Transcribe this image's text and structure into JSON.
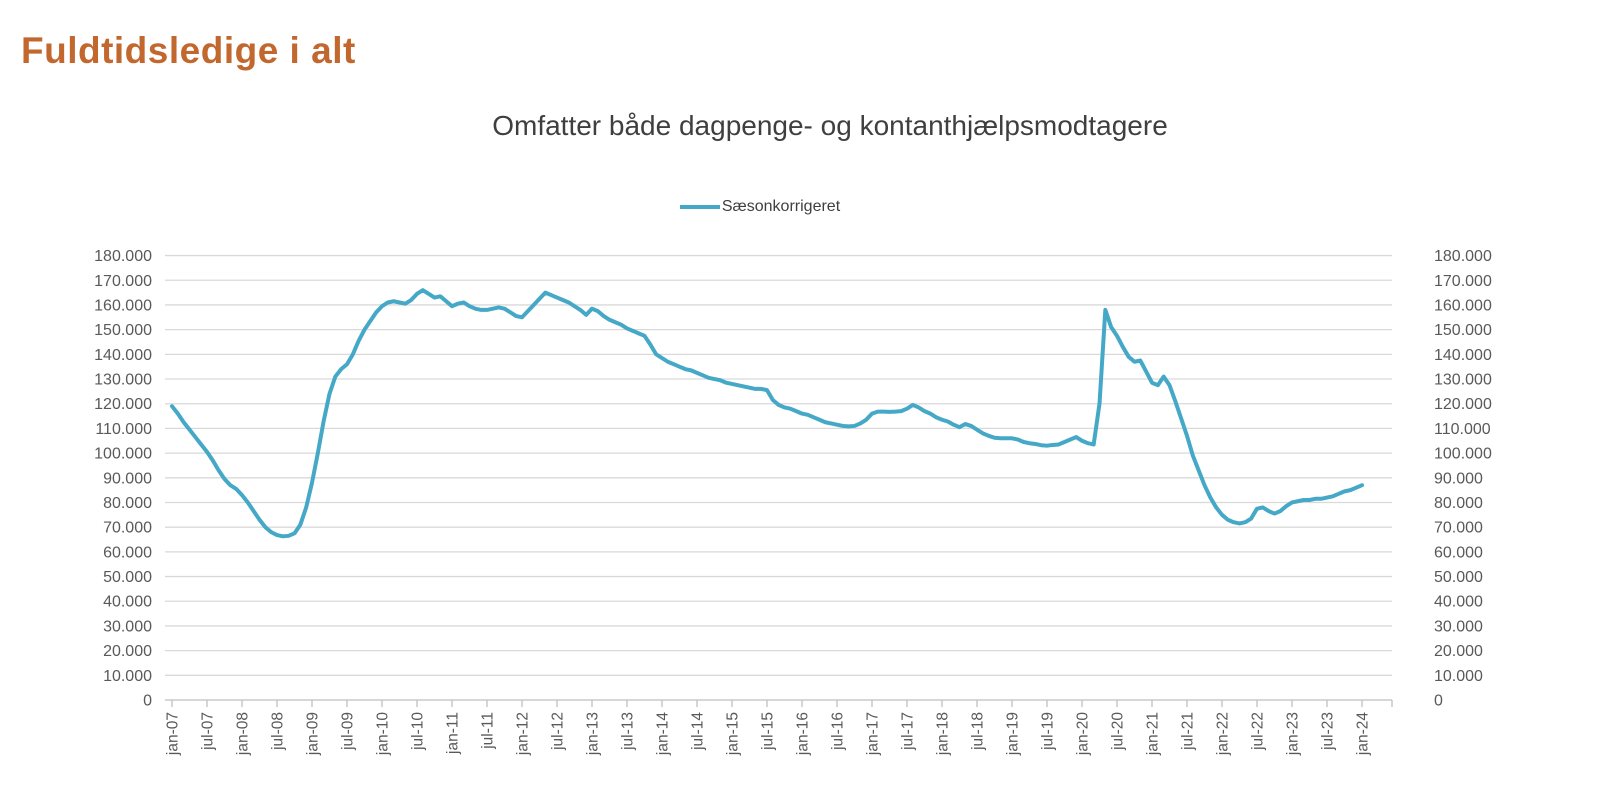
{
  "page": {
    "title": "Fuldtidsledige i alt"
  },
  "chart": {
    "subtitle": "Omfatter både dagpenge- og kontanthjælpsmodtagere",
    "legend": {
      "label": "Sæsonkorrigeret"
    }
  },
  "colors": {
    "title": "#c2682f",
    "series": "#45a8c6",
    "gridline": "#d9d9d9",
    "axis": "#bfbfbf",
    "tick_label": "#595959",
    "text": "#3f3f3f"
  },
  "chart_data": {
    "type": "line",
    "title": "Omfatter både dagpenge- og kontanthjælpsmodtagere",
    "xlabel": "",
    "ylabel": "",
    "ylim": [
      0,
      180000
    ],
    "y_step": 10000,
    "grid": "horizontal",
    "legend_position": "top",
    "y_tick_labels": [
      "180.000",
      "170.000",
      "160.000",
      "150.000",
      "140.000",
      "130.000",
      "120.000",
      "110.000",
      "100.000",
      "90.000",
      "80.000",
      "70.000",
      "60.000",
      "50.000",
      "40.000",
      "30.000",
      "20.000",
      "10.000",
      "0"
    ],
    "x_tick_labels": [
      "jan-07",
      "jul-07",
      "jan-08",
      "jul-08",
      "jan-09",
      "jul-09",
      "jan-10",
      "jul-10",
      "jan-11",
      "jul-11",
      "jan-12",
      "jul-12",
      "jan-13",
      "jul-13",
      "jan-14",
      "jul-14",
      "jan-15",
      "jul-15",
      "jan-16",
      "jul-16",
      "jan-17",
      "jul-17",
      "jan-18",
      "jul-18",
      "jan-19",
      "jul-19",
      "jan-20",
      "jul-20",
      "jan-21",
      "jul-21",
      "jan-22",
      "jul-22",
      "jan-23",
      "jul-23",
      "jan-24"
    ],
    "x_months_per_tick": 6,
    "series": [
      {
        "name": "Sæsonkorrigeret",
        "color": "#45a8c6",
        "start": "jan-07",
        "frequency": "monthly",
        "values": [
          119000,
          116000,
          112500,
          109500,
          106500,
          103500,
          100500,
          97000,
          93000,
          89500,
          87000,
          85500,
          83000,
          80000,
          76500,
          73000,
          70000,
          68000,
          66800,
          66300,
          66500,
          67500,
          71000,
          78000,
          88000,
          100000,
          113000,
          124000,
          131000,
          134000,
          136000,
          140000,
          145500,
          150000,
          153500,
          157000,
          159500,
          161000,
          161500,
          161000,
          160500,
          162000,
          164500,
          166000,
          164500,
          163000,
          163500,
          161500,
          159500,
          160500,
          161000,
          159500,
          158500,
          158000,
          158000,
          158500,
          159000,
          158500,
          157000,
          155500,
          155000,
          157500,
          160000,
          162500,
          165000,
          164000,
          163000,
          162000,
          161000,
          159500,
          158000,
          156000,
          158500,
          157500,
          155500,
          154000,
          153000,
          152000,
          150500,
          149500,
          148500,
          147500,
          144000,
          140000,
          138500,
          137000,
          136000,
          135000,
          134000,
          133500,
          132500,
          131500,
          130500,
          130000,
          129500,
          128500,
          128000,
          127500,
          127000,
          126500,
          126000,
          126000,
          125500,
          121500,
          119500,
          118500,
          118000,
          117000,
          116000,
          115500,
          114500,
          113500,
          112500,
          112000,
          111500,
          111000,
          110800,
          111000,
          112000,
          113500,
          116000,
          116800,
          116800,
          116700,
          116800,
          117000,
          118000,
          119500,
          118500,
          117000,
          116000,
          114500,
          113500,
          112800,
          111500,
          110500,
          111800,
          111000,
          109500,
          108000,
          107000,
          106200,
          106000,
          106000,
          106000,
          105500,
          104500,
          104000,
          103700,
          103200,
          103000,
          103300,
          103500,
          104500,
          105500,
          106500,
          105000,
          104000,
          103500,
          120000,
          158000,
          151000,
          147500,
          143000,
          139000,
          137000,
          137500,
          133000,
          128500,
          127500,
          131000,
          127500,
          121000,
          114000,
          107000,
          99000,
          93000,
          87000,
          82000,
          78000,
          75000,
          73000,
          72000,
          71500,
          72000,
          73500,
          77500,
          78000,
          76500,
          75500,
          76500,
          78500,
          80000,
          80500,
          81000,
          81000,
          81500,
          81500,
          82000,
          82500,
          83500,
          84500,
          85000,
          86000,
          87000
        ]
      }
    ]
  }
}
